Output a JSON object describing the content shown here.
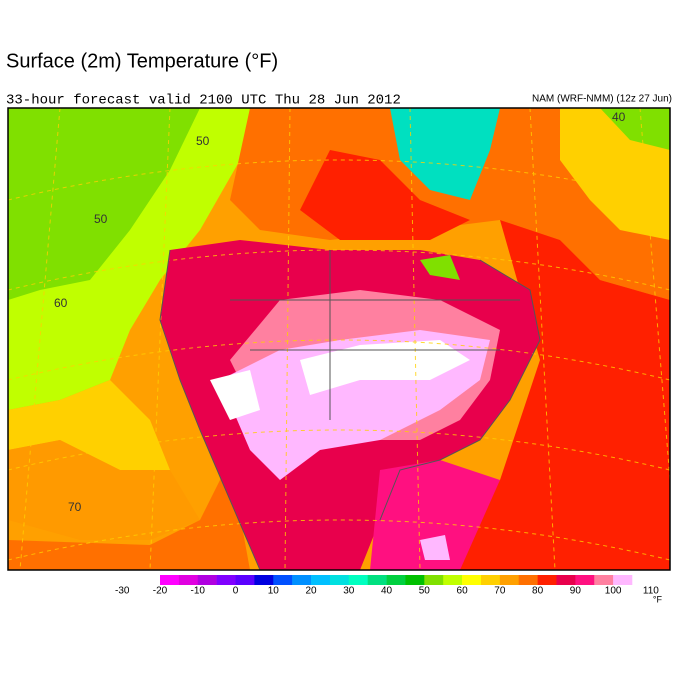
{
  "header": {
    "title": "Surface (2m) Temperature (°F)",
    "subtitle": "33-hour forecast valid 2100 UTC Thu 28 Jun 2012",
    "model": "NAM (WRF-NMM) (12z 27 Jun)"
  },
  "map": {
    "contour_labels": [
      "50",
      "60",
      "70",
      "40",
      "50"
    ]
  },
  "colorbar": {
    "range": [
      -20,
      105
    ],
    "ticks": [
      -30,
      -20,
      -10,
      0,
      10,
      20,
      30,
      40,
      50,
      60,
      70,
      80,
      90,
      100,
      110
    ],
    "unit": "°F",
    "colors": [
      "#ff00ff",
      "#e000e0",
      "#b000e0",
      "#8000ff",
      "#5a00ff",
      "#0000e0",
      "#0050ff",
      "#0090ff",
      "#00c0ff",
      "#00e0e0",
      "#00ffc0",
      "#00e080",
      "#00d040",
      "#00c000",
      "#80e000",
      "#c0ff00",
      "#ffff00",
      "#ffd000",
      "#ffa000",
      "#ff7000",
      "#ff2000",
      "#e8004c",
      "#ff1080",
      "#ff80a0",
      "#ffb8ff"
    ]
  }
}
